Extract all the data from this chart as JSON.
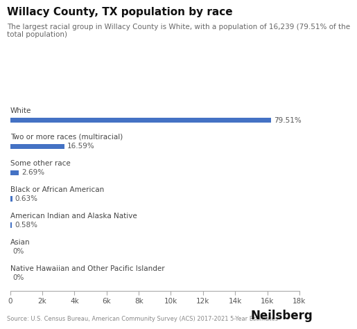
{
  "title": "Willacy County, TX population by race",
  "subtitle": "The largest racial group in Willacy County is White, with a population of 16,239 (79.51% of the\ntotal population)",
  "categories": [
    "White",
    "Two or more races (multiracial)",
    "Some other race",
    "Black or African American",
    "American Indian and Alaska Native",
    "Asian",
    "Native Hawaiian and Other Pacific Islander"
  ],
  "values": [
    16239,
    3388,
    549,
    129,
    118,
    0,
    0
  ],
  "percentages": [
    "79.51%",
    "16.59%",
    "2.69%",
    "0.63%",
    "0.58%",
    "0%",
    "0%"
  ],
  "bar_color": "#4472C4",
  "background_color": "#ffffff",
  "xlim": [
    0,
    18000
  ],
  "xticks": [
    0,
    2000,
    4000,
    6000,
    8000,
    10000,
    12000,
    14000,
    16000,
    18000
  ],
  "xtick_labels": [
    "0",
    "2k",
    "4k",
    "6k",
    "8k",
    "10k",
    "12k",
    "14k",
    "16k",
    "18k"
  ],
  "source_text": "Source: U.S. Census Bureau, American Community Survey (ACS) 2017-2021 5-Year Estimates",
  "brand_text": "Neilsberg",
  "title_fontsize": 11,
  "subtitle_fontsize": 7.5,
  "label_fontsize": 7.5,
  "pct_fontsize": 7.5,
  "tick_fontsize": 7.5,
  "source_fontsize": 6,
  "brand_fontsize": 12
}
